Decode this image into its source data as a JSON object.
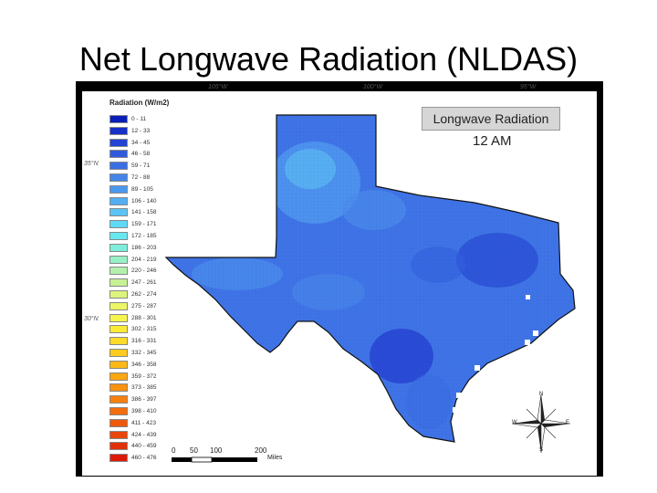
{
  "slide_title": "Net Longwave Radiation (NLDAS)",
  "map": {
    "panel_title": "Longwave Radiation",
    "time": "12 AM",
    "longitude_labels": [
      "105°W",
      "100°W",
      "95°W"
    ],
    "latitude_labels": [
      "35°N",
      "30°N"
    ],
    "legend": {
      "title": "Radiation (W/m2)",
      "items": [
        {
          "label": "0 - 11",
          "color": "#0a1fb8"
        },
        {
          "label": "12 - 33",
          "color": "#1730c8"
        },
        {
          "label": "34 - 45",
          "color": "#2244d4"
        },
        {
          "label": "46 - 58",
          "color": "#2f5ade"
        },
        {
          "label": "59 - 71",
          "color": "#3a6fe4"
        },
        {
          "label": "72 - 88",
          "color": "#4384ea"
        },
        {
          "label": "89 - 105",
          "color": "#4b98ef"
        },
        {
          "label": "106 - 140",
          "color": "#53aef3"
        },
        {
          "label": "141 - 158",
          "color": "#5ac4f6"
        },
        {
          "label": "159 - 171",
          "color": "#5ed9f8"
        },
        {
          "label": "172 - 185",
          "color": "#66e8f0"
        },
        {
          "label": "186 - 203",
          "color": "#7deedd"
        },
        {
          "label": "204 - 219",
          "color": "#97f0c6"
        },
        {
          "label": "220 - 246",
          "color": "#b1f1ad"
        },
        {
          "label": "247 - 261",
          "color": "#c7f294"
        },
        {
          "label": "262 - 274",
          "color": "#dcf47c"
        },
        {
          "label": "275 - 287",
          "color": "#ecf564"
        },
        {
          "label": "288 - 301",
          "color": "#f7f44c"
        },
        {
          "label": "302 - 315",
          "color": "#fbea36"
        },
        {
          "label": "316 - 331",
          "color": "#fddb28"
        },
        {
          "label": "332 - 345",
          "color": "#fdcb1e"
        },
        {
          "label": "346 - 358",
          "color": "#fcb816"
        },
        {
          "label": "359 - 372",
          "color": "#fba612"
        },
        {
          "label": "373 - 385",
          "color": "#f9930f"
        },
        {
          "label": "386 - 397",
          "color": "#f6800d"
        },
        {
          "label": "398 - 410",
          "color": "#f26d0c"
        },
        {
          "label": "411 - 423",
          "color": "#ee5a0b"
        },
        {
          "label": "424 - 439",
          "color": "#e8460a"
        },
        {
          "label": "440 - 459",
          "color": "#e23109"
        },
        {
          "label": "460 - 476",
          "color": "#db1a08"
        }
      ]
    },
    "scale": {
      "ticks": [
        "0",
        "50",
        "100",
        "200"
      ],
      "unit": "Miles"
    },
    "compass": {
      "n": "N",
      "s": "S",
      "e": "E",
      "w": "W"
    },
    "colors": {
      "state_fill": "#3f74e6",
      "low_patch": "#2f55d9",
      "high_patch": "#55a6f0",
      "frame": "#000000"
    }
  }
}
